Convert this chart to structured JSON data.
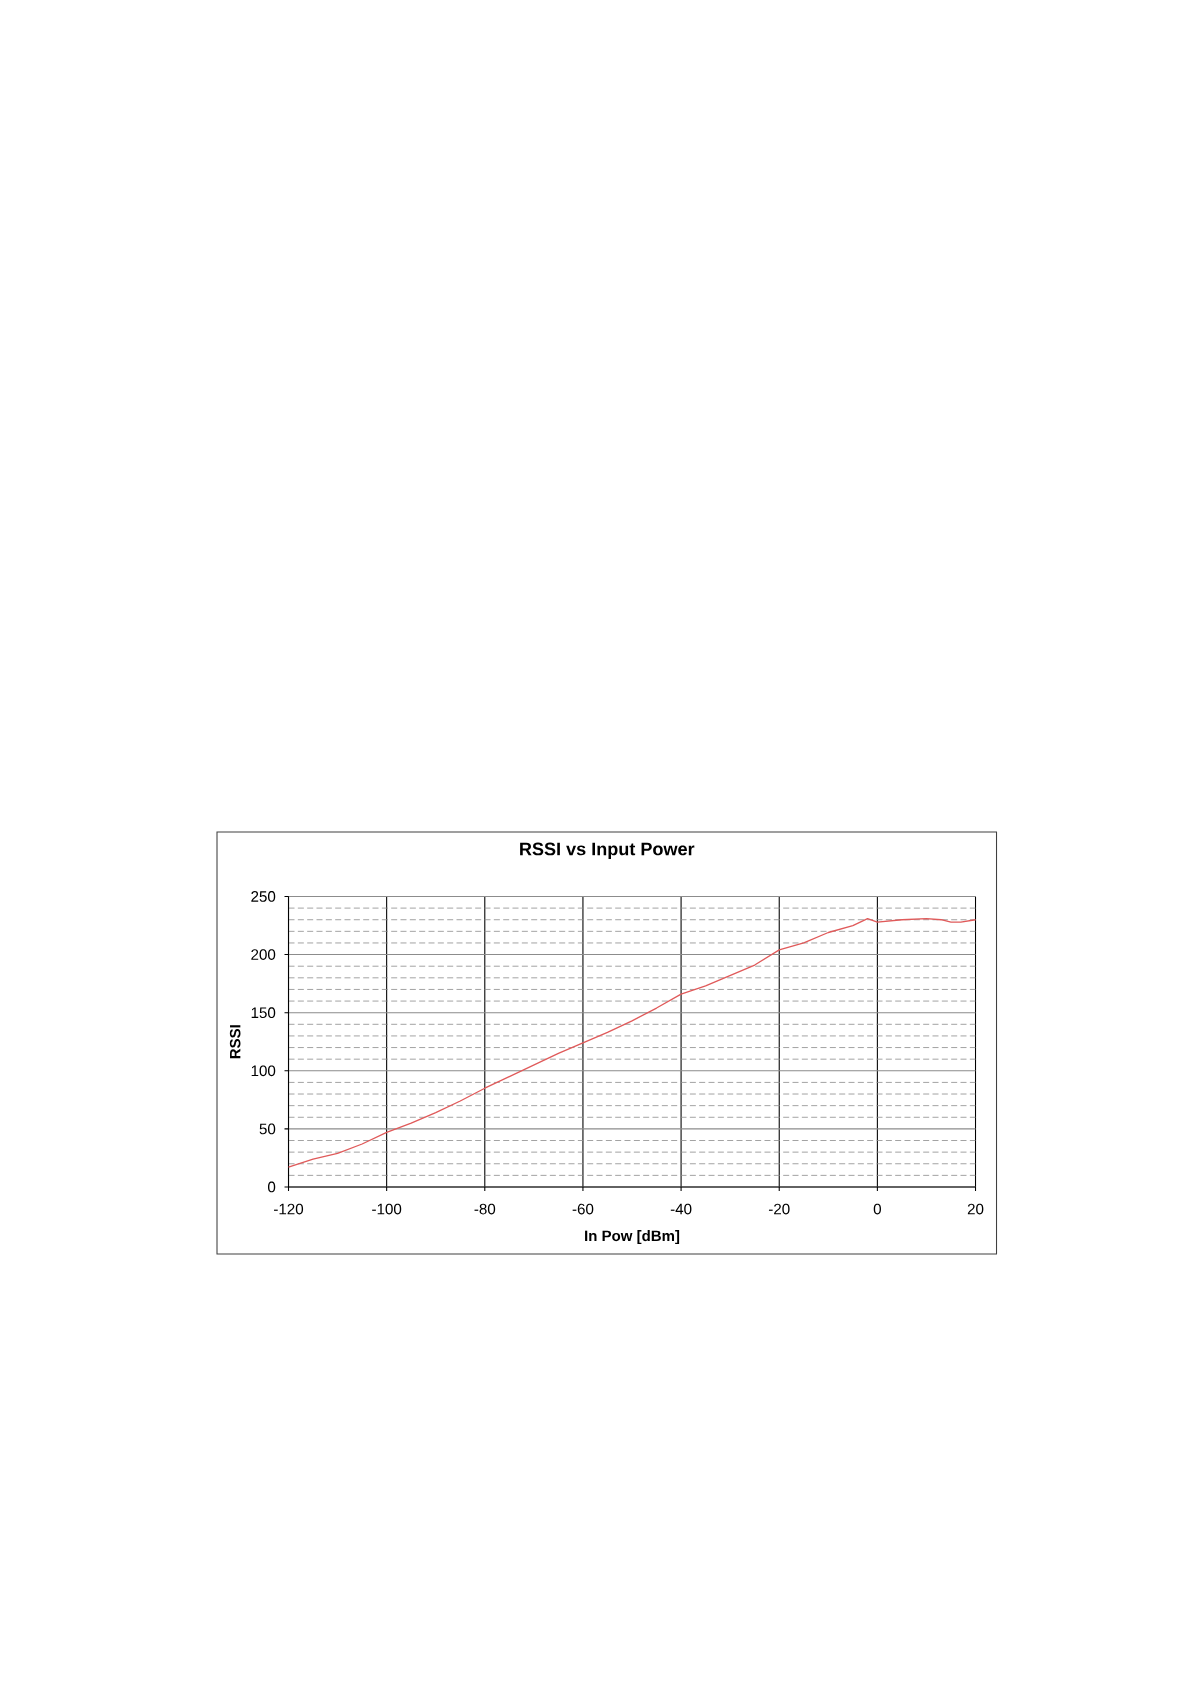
{
  "chart_data": {
    "type": "line",
    "title": "RSSI vs Input Power",
    "xlabel": "In Pow [dBm]",
    "ylabel": "RSSI",
    "x": [
      -120,
      -115,
      -110,
      -105,
      -100,
      -95,
      -90,
      -85,
      -80,
      -75,
      -70,
      -65,
      -60,
      -55,
      -50,
      -45,
      -40,
      -35,
      -30,
      -25,
      -20,
      -15,
      -10,
      -5,
      -2,
      0,
      5,
      10,
      13,
      15,
      17,
      20
    ],
    "values": [
      17,
      24,
      29,
      37,
      47,
      55,
      64,
      74,
      85,
      95,
      105,
      115,
      124,
      133,
      143,
      154,
      166,
      173,
      182,
      191,
      204,
      210,
      219,
      225,
      231,
      228,
      230,
      231,
      230,
      228,
      228,
      230
    ],
    "color": "#e05a5a",
    "xlim": [
      -120,
      20
    ],
    "ylim": [
      0,
      250
    ],
    "xticks": [
      -120,
      -100,
      -80,
      -60,
      -40,
      -20,
      0,
      20
    ],
    "yticks": [
      0,
      50,
      100,
      150,
      200,
      250
    ],
    "grid": true
  }
}
